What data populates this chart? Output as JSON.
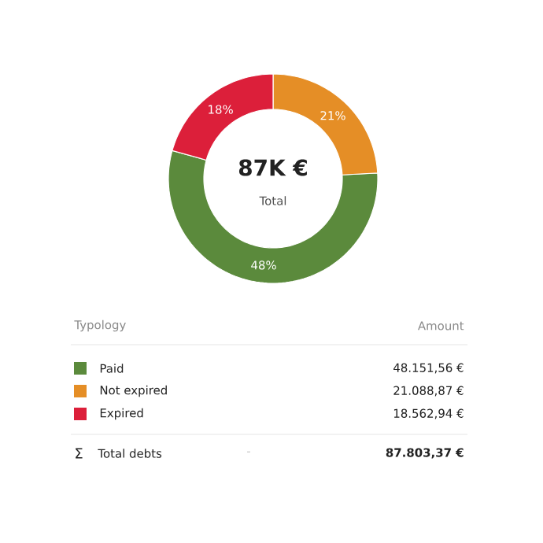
{
  "chart_data": {
    "type": "donut",
    "categories": [
      "Paid",
      "Not expired",
      "Expired"
    ],
    "values": [
      48,
      21,
      18
    ],
    "value_labels": [
      "48%",
      "21%",
      "18%"
    ],
    "colors": [
      "#5b8a3c",
      "#e58e26",
      "#dc1f3a"
    ],
    "legend": "bottom",
    "annotations": [
      "87K €",
      "Total",
      "Typology",
      "Amount",
      "48.151,56 €",
      "21.088,87 €",
      "18.562,94 €",
      "Σ",
      "Total debts",
      "-",
      "87.803,37 €"
    ]
  }
}
